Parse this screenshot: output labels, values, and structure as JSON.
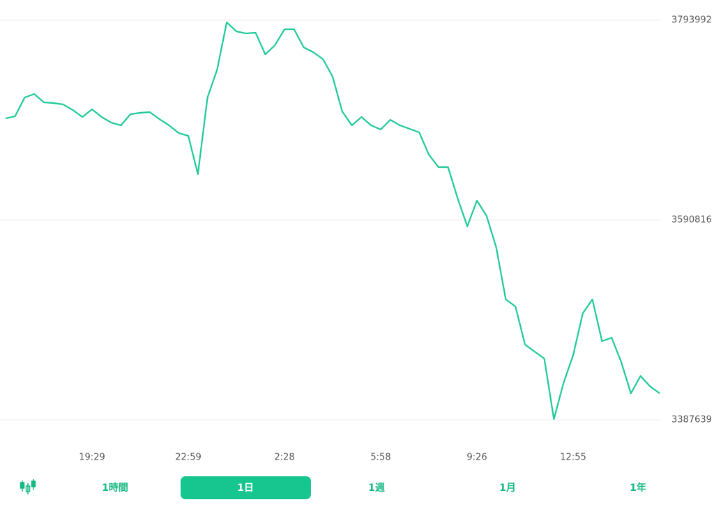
{
  "chart_data": {
    "type": "line",
    "categories": [
      null,
      null,
      null,
      null,
      null,
      null,
      null,
      null,
      null,
      "19:29",
      null,
      null,
      null,
      null,
      null,
      null,
      null,
      null,
      null,
      "22:59",
      null,
      null,
      null,
      null,
      null,
      null,
      null,
      null,
      null,
      "2:28",
      null,
      null,
      null,
      null,
      null,
      null,
      null,
      null,
      null,
      "5:58",
      null,
      null,
      null,
      null,
      null,
      null,
      null,
      null,
      null,
      "9:26",
      null,
      null,
      null,
      null,
      null,
      null,
      null,
      null,
      null,
      "12:55",
      null,
      null,
      null,
      null,
      null,
      null,
      null,
      null,
      null
    ],
    "series": [
      {
        "color": "#1ec99a",
        "values": [
          3694160,
          3696283,
          3715397,
          3718936,
          3710441,
          3709734,
          3708318,
          3702655,
          3695576,
          3703363,
          3695576,
          3689912,
          3687081,
          3698407,
          3699823,
          3700531,
          3693452,
          3687081,
          3679294,
          3676462,
          3637528,
          3715397,
          3743713,
          3791850,
          3782647,
          3780524,
          3781231,
          3759287,
          3768489,
          3784771,
          3784771,
          3766366,
          3761410,
          3754331,
          3736634,
          3701239,
          3687081,
          3695576,
          3687081,
          3682833,
          3692744,
          3687081,
          3683541,
          3680002,
          3657349,
          3644607,
          3644607,
          3612751,
          3584435,
          3610628,
          3595054,
          3563198,
          3510106,
          3503027,
          3464092,
          3457013,
          3449934,
          3388347,
          3425158,
          3453474,
          3495948,
          3510106,
          3467632,
          3471171,
          3446395,
          3414539,
          3432237,
          3421618,
          3414539
        ]
      }
    ],
    "ylim": [
      3387639,
      3793992
    ],
    "yticks": [
      3387639,
      3590816,
      3793992
    ],
    "grid": true
  },
  "tabs": [
    "1時間",
    "1日",
    "1週",
    "1月",
    "1年"
  ],
  "active_tab": 1
}
